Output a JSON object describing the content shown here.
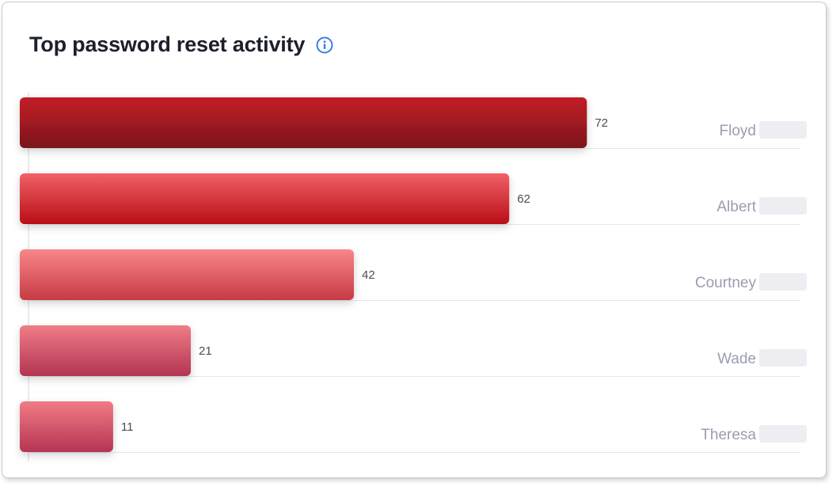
{
  "card": {
    "title": "Top password reset activity"
  },
  "icons": {
    "info": "info-circle-icon"
  },
  "colors": {
    "title": "#1c1f2b",
    "info_icon": "#3b7de0",
    "value_label": "#4a4d57",
    "name_label": "#9a9db0",
    "grid": "#e6e7ec",
    "axis": "#d5d7de"
  },
  "chart_data": {
    "type": "bar",
    "orientation": "horizontal",
    "categories": [
      "Floyd",
      "Albert",
      "Courtney",
      "Wade",
      "Theresa"
    ],
    "values": [
      72,
      62,
      42,
      21,
      11
    ],
    "title": "Top password reset activity",
    "xlim": [
      0,
      100
    ],
    "grid": true,
    "legend": "none",
    "bar_gradients": [
      [
        "#c41f26",
        "#7a151c"
      ],
      [
        "#f06166",
        "#b90e16"
      ],
      [
        "#f8868a",
        "#c73a44"
      ],
      [
        "#ef7c86",
        "#b33452"
      ],
      [
        "#f07b85",
        "#b53452"
      ]
    ]
  }
}
